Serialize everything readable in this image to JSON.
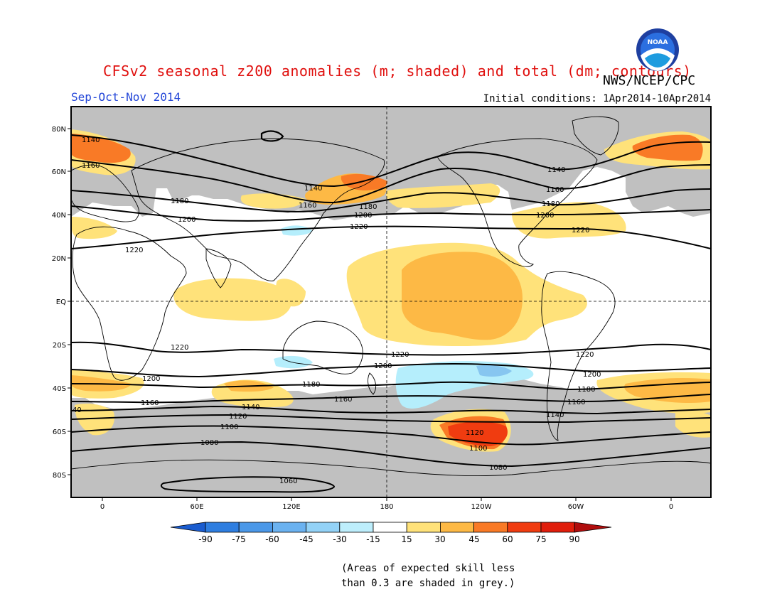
{
  "header": {
    "title": "CFSv2 seasonal z200 anomalies (m; shaded) and total (dm; contours)",
    "agency": "NWS/NCEP/CPC",
    "season": "Sep-Oct-Nov 2014",
    "initial_conditions": "Initial conditions: 1Apr2014-10Apr2014",
    "logo_text": "NOAA"
  },
  "map": {
    "lat_labels": [
      "80N",
      "60N",
      "40N",
      "20N",
      "EQ",
      "20S",
      "40S",
      "60S",
      "80S"
    ],
    "lon_labels": [
      "0",
      "60E",
      "120E",
      "180",
      "120W",
      "60W",
      "0"
    ],
    "contour_labels": [
      "1140",
      "1160",
      "1180",
      "1200",
      "1220",
      "1140",
      "1160",
      "1180",
      "1200",
      "1220",
      "1140",
      "1160",
      "1180",
      "1200",
      "1220",
      "1220",
      "1220",
      "1220",
      "1200",
      "1200",
      "1200",
      "1180",
      "1180",
      "1160",
      "1160",
      "1160",
      "40",
      "1140",
      "1140",
      "1120",
      "1120",
      "1100",
      "1100",
      "1080",
      "1080",
      "1060"
    ],
    "colors": {
      "grey_skill": "#c0c0c0",
      "light_yellow": "#ffe27a",
      "yellow_orange": "#fdb945",
      "orange": "#f97a26",
      "red_orange": "#f03c10",
      "light_cyan": "#b5eefc",
      "light_blue": "#87c6f0"
    }
  },
  "colorbar": {
    "tick_labels": [
      "-90",
      "-75",
      "-60",
      "-45",
      "-30",
      "-15",
      "15",
      "30",
      "45",
      "60",
      "75",
      "90"
    ],
    "colors": [
      "#1a5ccf",
      "#2e7ee0",
      "#4b98e8",
      "#6bb2f0",
      "#93d2f7",
      "#bdeefc",
      "#ffffff",
      "#ffe27a",
      "#fdb945",
      "#f97a26",
      "#f03c10",
      "#e01e0c",
      "#b00d0d"
    ]
  },
  "footnote": {
    "line1": "(Areas of expected skill less",
    "line2": "than 0.3 are shaded in grey.)"
  }
}
